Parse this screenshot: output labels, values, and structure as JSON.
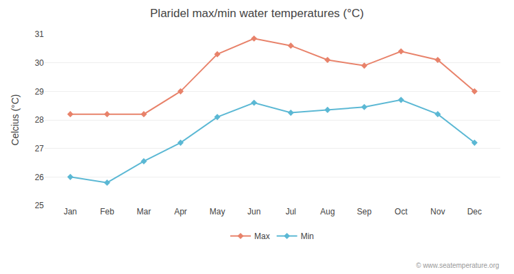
{
  "chart_data": {
    "type": "line",
    "title": "Plaridel max/min water temperatures (°C)",
    "ylabel": "Celcius (°C)",
    "categories": [
      "Jan",
      "Feb",
      "Mar",
      "Apr",
      "May",
      "Jun",
      "Jul",
      "Aug",
      "Sep",
      "Oct",
      "Nov",
      "Dec"
    ],
    "series": [
      {
        "name": "Max",
        "color": "#e8826a",
        "marker": "diamond",
        "values": [
          28.2,
          28.2,
          28.2,
          29.0,
          30.3,
          30.85,
          30.6,
          30.1,
          29.9,
          30.4,
          30.1,
          29.0
        ]
      },
      {
        "name": "Min",
        "color": "#5bb8d4",
        "marker": "diamond",
        "values": [
          26.0,
          25.8,
          26.55,
          27.2,
          28.1,
          28.6,
          28.25,
          28.35,
          28.45,
          28.7,
          28.2,
          27.2
        ]
      }
    ],
    "ylim": [
      25,
      31
    ],
    "yticks": [
      25,
      26,
      27,
      28,
      29,
      30,
      31
    ],
    "grid": true,
    "legend": "bottom",
    "annotations": [
      "© www.seatemperature.org"
    ]
  }
}
